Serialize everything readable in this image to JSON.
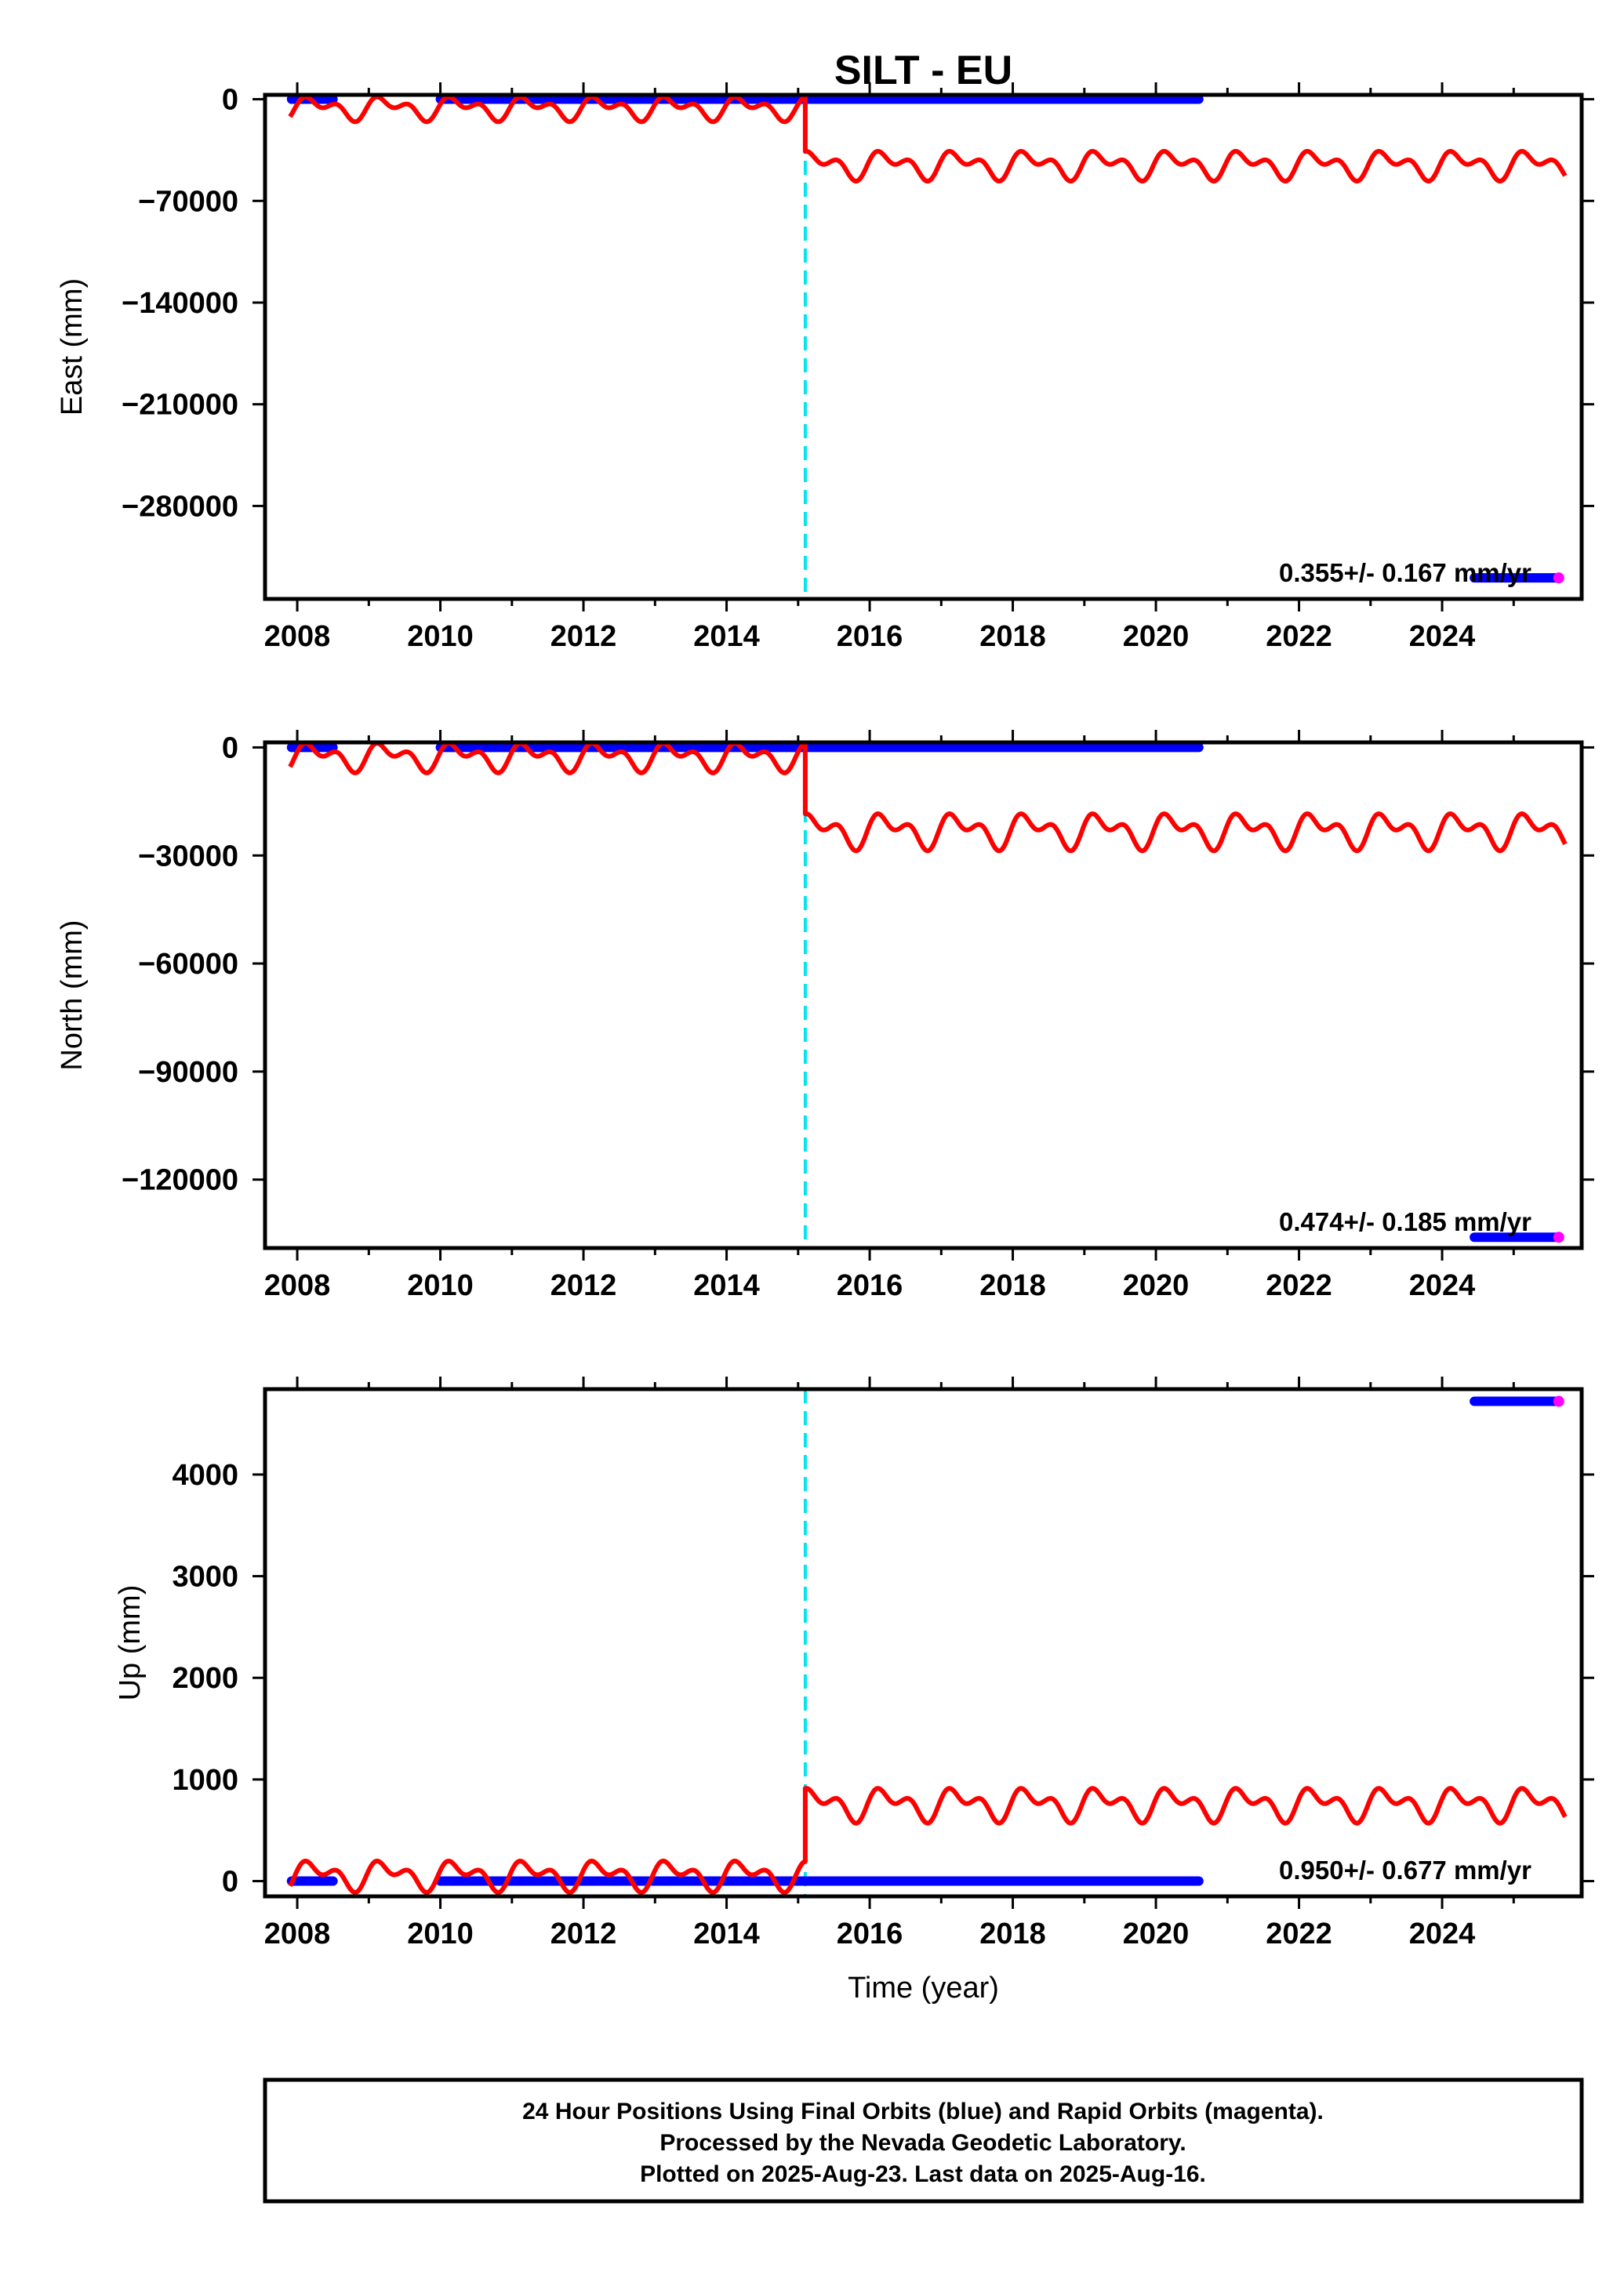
{
  "chart_data": [
    {
      "type": "line",
      "title": "SILT - EU",
      "ylabel": "East (mm)",
      "xlabel": "",
      "xlim": [
        2007.55,
        2025.95
      ],
      "ylim": [
        -344000,
        3000
      ],
      "x_ticks": [
        2008,
        2010,
        2012,
        2014,
        2016,
        2018,
        2020,
        2022,
        2024
      ],
      "y_ticks": [
        0,
        -70000,
        -140000,
        -210000,
        -280000
      ],
      "y_tick_labels": [
        "0",
        "−70000",
        "−140000",
        "−210000",
        "−280000"
      ],
      "rate_text": "0.355+/- 0.167 mm/yr",
      "step_epoch": 2015.1,
      "series": [
        {
          "color": "#0000ff",
          "segments": [
            {
              "x": [
                2007.92,
                2008.5
              ],
              "y": [
                0,
                0
              ]
            },
            {
              "x": [
                2010.0,
                2020.6
              ],
              "y": [
                0,
                0
              ]
            },
            {
              "x": [
                2024.45,
                2025.6
              ],
              "y": [
                -329500,
                -329500
              ]
            }
          ]
        },
        {
          "color": "#ff00ff",
          "points": [
            {
              "x": 2025.63,
              "y": -329500
            }
          ]
        },
        {
          "color": "#ff0000",
          "model": {
            "pre_offset": -6000,
            "post_offset": -45000,
            "pre_amplitude": 10000,
            "post_amplitude": 12000
          }
        }
      ]
    },
    {
      "type": "line",
      "title": "",
      "ylabel": "North (mm)",
      "xlabel": "",
      "xlim": [
        2007.55,
        2025.95
      ],
      "ylim": [
        -139000,
        1400
      ],
      "x_ticks": [
        2008,
        2010,
        2012,
        2014,
        2016,
        2018,
        2020,
        2022,
        2024
      ],
      "y_ticks": [
        0,
        -30000,
        -60000,
        -90000,
        -120000
      ],
      "y_tick_labels": [
        "0",
        "−30000",
        "−60000",
        "−90000",
        "−120000"
      ],
      "rate_text": "0.474+/- 0.185 mm/yr",
      "step_epoch": 2015.1,
      "series": [
        {
          "color": "#0000ff",
          "segments": [
            {
              "x": [
                2007.92,
                2008.5
              ],
              "y": [
                0,
                0
              ]
            },
            {
              "x": [
                2010.0,
                2020.6
              ],
              "y": [
                0,
                0
              ]
            },
            {
              "x": [
                2024.45,
                2025.6
              ],
              "y": [
                -136000,
                -136000
              ]
            }
          ]
        },
        {
          "color": "#ff00ff",
          "points": [
            {
              "x": 2025.63,
              "y": -136000
            }
          ]
        },
        {
          "color": "#ff0000",
          "model": {
            "pre_offset": -2500,
            "post_offset": -23000,
            "pre_amplitude": 4800,
            "post_amplitude": 6000
          }
        }
      ]
    },
    {
      "type": "line",
      "title": "",
      "ylabel": "Up (mm)",
      "xlabel": "Time (year)",
      "xlim": [
        2007.55,
        2025.95
      ],
      "ylim": [
        -150,
        4840
      ],
      "x_ticks": [
        2008,
        2010,
        2012,
        2014,
        2016,
        2018,
        2020,
        2022,
        2024
      ],
      "y_ticks": [
        0,
        1000,
        2000,
        3000,
        4000
      ],
      "y_tick_labels": [
        "0",
        "1000",
        "2000",
        "3000",
        "4000"
      ],
      "rate_text": "0.950+/- 0.677 mm/yr",
      "step_epoch": 2015.1,
      "series": [
        {
          "color": "#0000ff",
          "segments": [
            {
              "x": [
                2007.92,
                2008.5
              ],
              "y": [
                0,
                0
              ]
            },
            {
              "x": [
                2010.0,
                2020.6
              ],
              "y": [
                0,
                0
              ]
            },
            {
              "x": [
                2024.45,
                2025.6
              ],
              "y": [
                4720,
                4720
              ]
            }
          ]
        },
        {
          "color": "#ff00ff",
          "points": [
            {
              "x": 2025.63,
              "y": 4720
            }
          ]
        },
        {
          "color": "#ff0000",
          "model": {
            "pre_offset": 60,
            "post_offset": 760,
            "pre_amplitude": 180,
            "post_amplitude": 200
          }
        }
      ]
    }
  ],
  "caption": {
    "line1": "24 Hour Positions Using Final Orbits (blue) and Rapid Orbits (magenta).",
    "line2": "Processed by the Nevada Geodetic Laboratory.",
    "line3": "Plotted on 2025-Aug-23. Last data on 2025-Aug-16."
  },
  "colors": {
    "final_orbits": "#0000ff",
    "rapid_orbits": "#ff00ff",
    "model": "#ff0000",
    "step_marker": "#00e5ee",
    "frame": "#000000"
  }
}
